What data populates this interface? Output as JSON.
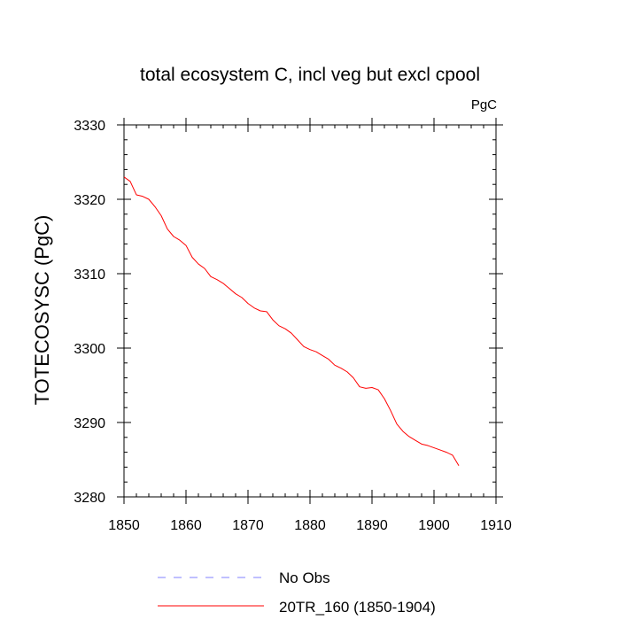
{
  "chart_data": {
    "type": "line",
    "title": "total ecosystem C, incl veg but excl cpool",
    "units": "PgC",
    "ylabel": "TOTECOSYSC  (PgC)",
    "xlabel": "",
    "xlim": [
      1850,
      1910
    ],
    "ylim": [
      3280,
      3330
    ],
    "xticks": [
      1850,
      1860,
      1870,
      1880,
      1890,
      1900,
      1910
    ],
    "xtick_labels": [
      "1850",
      "1860",
      "1870",
      "1880",
      "1890",
      "1900",
      "1910"
    ],
    "yticks": [
      3280,
      3290,
      3300,
      3310,
      3320,
      3330
    ],
    "ytick_labels": [
      "3280",
      "3290",
      "3300",
      "3310",
      "3320",
      "3330"
    ],
    "grid": false,
    "legend_position": "bottom",
    "legend": [
      {
        "label": "No Obs",
        "color": "#8080ff",
        "style": "dashed"
      },
      {
        "label": "20TR_160 (1850-1904)",
        "color": "#ff0000",
        "style": "solid"
      }
    ],
    "series": [
      {
        "name": "20TR_160 (1850-1904)",
        "color": "#ff0000",
        "x": [
          1850,
          1851,
          1852,
          1853,
          1854,
          1855,
          1856,
          1857,
          1858,
          1859,
          1860,
          1861,
          1862,
          1863,
          1864,
          1865,
          1866,
          1867,
          1868,
          1869,
          1870,
          1871,
          1872,
          1873,
          1874,
          1875,
          1876,
          1877,
          1878,
          1879,
          1880,
          1881,
          1882,
          1883,
          1884,
          1885,
          1886,
          1887,
          1888,
          1889,
          1890,
          1891,
          1892,
          1893,
          1894,
          1895,
          1896,
          1897,
          1898,
          1899,
          1900,
          1901,
          1902,
          1903,
          1904
        ],
        "values": [
          3323.0,
          3322.4,
          3320.6,
          3320.4,
          3320.0,
          3319.0,
          3317.8,
          3316.0,
          3315.0,
          3314.5,
          3313.8,
          3312.2,
          3311.3,
          3310.7,
          3309.6,
          3309.2,
          3308.7,
          3308.0,
          3307.3,
          3306.8,
          3306.0,
          3305.4,
          3305.0,
          3304.9,
          3303.8,
          3303.0,
          3302.6,
          3302.0,
          3301.1,
          3300.2,
          3299.8,
          3299.5,
          3299.0,
          3298.5,
          3297.7,
          3297.3,
          3296.8,
          3296.0,
          3294.8,
          3294.6,
          3294.7,
          3294.4,
          3293.2,
          3291.6,
          3289.8,
          3288.8,
          3288.1,
          3287.6,
          3287.1,
          3286.9,
          3286.6,
          3286.3,
          3286.0,
          3285.6,
          3284.2
        ]
      }
    ]
  }
}
